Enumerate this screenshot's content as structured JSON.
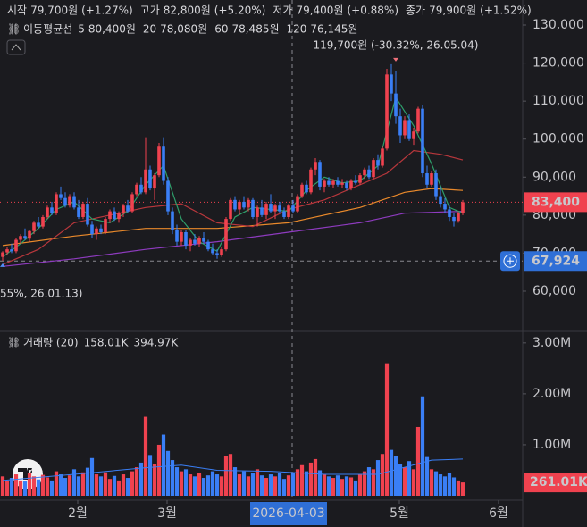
{
  "header": {
    "items": [
      {
        "label": "시작",
        "value": "79,700원",
        "change": "(+1.27%)"
      },
      {
        "label": "고가",
        "value": "82,800원",
        "change": "(+5.20%)"
      },
      {
        "label": "저가",
        "value": "79,400원",
        "change": "(+0.88%)"
      },
      {
        "label": "종가",
        "value": "79,900원",
        "change": "(+1.52%)"
      }
    ]
  },
  "ma_legend": {
    "title": "이동평균선",
    "items": [
      {
        "period": "5",
        "value": "80,400원"
      },
      {
        "period": "20",
        "value": "78,080원"
      },
      {
        "period": "60",
        "value": "78,485원"
      },
      {
        "period": "120",
        "value": "76,145원"
      }
    ]
  },
  "chart_data": {
    "type": "candlestick",
    "up_color": "#f0424f",
    "down_color": "#3a7ff6",
    "ohlc": [
      [
        69000,
        70500,
        68000,
        70200
      ],
      [
        70200,
        71500,
        69500,
        71000
      ],
      [
        71000,
        72500,
        70000,
        70500
      ],
      [
        70500,
        74000,
        70000,
        73500
      ],
      [
        73500,
        75000,
        72500,
        74500
      ],
      [
        74500,
        76500,
        73500,
        73800
      ],
      [
        73800,
        76000,
        73000,
        75800
      ],
      [
        75800,
        78500,
        75000,
        78000
      ],
      [
        78000,
        79500,
        76500,
        77000
      ],
      [
        77000,
        80000,
        76500,
        79500
      ],
      [
        79500,
        82500,
        79000,
        82000
      ],
      [
        82000,
        83500,
        80000,
        80500
      ],
      [
        80500,
        86000,
        80000,
        85500
      ],
      [
        85500,
        87500,
        84000,
        84500
      ],
      [
        84500,
        86000,
        82000,
        82500
      ],
      [
        82500,
        85500,
        82000,
        85000
      ],
      [
        85000,
        86000,
        81500,
        82000
      ],
      [
        82000,
        84000,
        79000,
        79500
      ],
      [
        79500,
        83500,
        79000,
        83000
      ],
      [
        83000,
        84500,
        77000,
        77500
      ],
      [
        77500,
        78500,
        74000,
        75000
      ],
      [
        75000,
        77000,
        73500,
        76500
      ],
      [
        76500,
        77500,
        75000,
        75500
      ],
      [
        75500,
        79500,
        75000,
        79000
      ],
      [
        79000,
        81500,
        78000,
        81000
      ],
      [
        81000,
        82000,
        78500,
        79000
      ],
      [
        79000,
        81000,
        78000,
        80500
      ],
      [
        80500,
        83000,
        79500,
        82500
      ],
      [
        82500,
        84000,
        80500,
        81000
      ],
      [
        81000,
        86000,
        80500,
        85500
      ],
      [
        85500,
        88500,
        85000,
        88000
      ],
      [
        88000,
        90000,
        85500,
        86000
      ],
      [
        86000,
        100500,
        85500,
        92000
      ],
      [
        92000,
        93000,
        86500,
        87000
      ],
      [
        87000,
        91000,
        84000,
        90500
      ],
      [
        90500,
        99000,
        90000,
        98000
      ],
      [
        98000,
        100500,
        88000,
        89000
      ],
      [
        89000,
        90000,
        80000,
        81000
      ],
      [
        81000,
        82000,
        75000,
        76000
      ],
      [
        76000,
        77500,
        72000,
        73000
      ],
      [
        73000,
        76000,
        72000,
        75500
      ],
      [
        75500,
        76000,
        71000,
        72000
      ],
      [
        72000,
        74000,
        70500,
        73500
      ],
      [
        73500,
        75000,
        72000,
        72500
      ],
      [
        72500,
        74500,
        71500,
        74000
      ],
      [
        74000,
        75500,
        72500,
        73000
      ],
      [
        73000,
        73500,
        70500,
        71000
      ],
      [
        71000,
        72500,
        69500,
        70000
      ],
      [
        70000,
        71000,
        68500,
        69500
      ],
      [
        69500,
        71500,
        69000,
        71000
      ],
      [
        71000,
        79500,
        70500,
        79000
      ],
      [
        79000,
        84500,
        78500,
        84000
      ],
      [
        84000,
        85000,
        81000,
        81500
      ],
      [
        81500,
        84000,
        80000,
        83500
      ],
      [
        83500,
        85000,
        81500,
        82000
      ],
      [
        82000,
        84500,
        81000,
        84000
      ],
      [
        84000,
        84500,
        79000,
        79500
      ],
      [
        79500,
        82500,
        77000,
        82000
      ],
      [
        82000,
        84000,
        79500,
        80000
      ],
      [
        80000,
        83500,
        79000,
        83000
      ],
      [
        83000,
        85500,
        80500,
        81000
      ],
      [
        81000,
        83000,
        79000,
        82500
      ],
      [
        82500,
        83500,
        80500,
        81000
      ],
      [
        81000,
        82000,
        79000,
        79500
      ],
      [
        79500,
        83000,
        79000,
        82500
      ],
      [
        82500,
        84000,
        80500,
        81000
      ],
      [
        81000,
        85500,
        80500,
        85000
      ],
      [
        85000,
        88500,
        84500,
        88000
      ],
      [
        88000,
        89000,
        85500,
        86000
      ],
      [
        86000,
        92500,
        85500,
        92000
      ],
      [
        92000,
        95000,
        90500,
        94000
      ],
      [
        94000,
        94500,
        86500,
        87500
      ],
      [
        87500,
        89500,
        86000,
        89000
      ],
      [
        89000,
        90000,
        87500,
        88000
      ],
      [
        88000,
        89500,
        87000,
        89000
      ],
      [
        89000,
        90000,
        87500,
        88000
      ],
      [
        88000,
        89500,
        87000,
        88500
      ],
      [
        88500,
        89000,
        86500,
        87000
      ],
      [
        87000,
        89500,
        86500,
        89000
      ],
      [
        89000,
        90500,
        88000,
        88500
      ],
      [
        88500,
        91000,
        88000,
        90500
      ],
      [
        90500,
        92500,
        89500,
        92000
      ],
      [
        92000,
        93000,
        89500,
        90000
      ],
      [
        90000,
        95000,
        89500,
        94500
      ],
      [
        94500,
        96000,
        92000,
        93000
      ],
      [
        93000,
        98000,
        92500,
        97500
      ],
      [
        97500,
        118500,
        97000,
        117000
      ],
      [
        117000,
        119700,
        110000,
        112000
      ],
      [
        112000,
        118000,
        104000,
        106000
      ],
      [
        106000,
        108000,
        99000,
        101000
      ],
      [
        101000,
        106000,
        100000,
        105000
      ],
      [
        105000,
        106500,
        99500,
        100000
      ],
      [
        100000,
        103000,
        98500,
        102000
      ],
      [
        102000,
        108500,
        101500,
        108000
      ],
      [
        108000,
        109000,
        90000,
        91000
      ],
      [
        91000,
        93000,
        87000,
        88000
      ],
      [
        88000,
        91500,
        87500,
        91000
      ],
      [
        91000,
        92000,
        84000,
        85000
      ],
      [
        85000,
        87500,
        82000,
        83000
      ],
      [
        83000,
        84500,
        80500,
        81500
      ],
      [
        81500,
        82500,
        78500,
        79500
      ],
      [
        79500,
        80500,
        77000,
        78500
      ],
      [
        78500,
        81000,
        78000,
        80500
      ],
      [
        80500,
        84000,
        80000,
        83400
      ]
    ],
    "volume": [
      380000,
      300000,
      350000,
      420000,
      300000,
      280000,
      450000,
      380000,
      320000,
      410000,
      360000,
      300000,
      480000,
      420000,
      350000,
      400000,
      520000,
      380000,
      460000,
      550000,
      740000,
      420000,
      380000,
      460000,
      330000,
      390000,
      300000,
      420000,
      350000,
      480000,
      560000,
      650000,
      1550000,
      800000,
      620000,
      1000000,
      1200000,
      880000,
      700000,
      560000,
      480000,
      520000,
      420000,
      380000,
      450000,
      350000,
      400000,
      480000,
      420000,
      380000,
      780000,
      820000,
      560000,
      420000,
      480000,
      380000,
      450000,
      520000,
      400000,
      350000,
      420000,
      380000,
      450000,
      330000,
      400000,
      460000,
      520000,
      600000,
      480000,
      650000,
      720000,
      500000,
      420000,
      380000,
      350000,
      400000,
      330000,
      380000,
      360000,
      300000,
      420000,
      480000,
      560000,
      520000,
      700000,
      820000,
      2600000,
      900000,
      780000,
      620000,
      560000,
      680000,
      520000,
      1350000,
      1950000,
      760000,
      520000,
      480000,
      420000,
      380000,
      440000,
      360000,
      300000,
      261010
    ],
    "ma": [
      {
        "name": "5",
        "color": "#2e9e6a",
        "x": [
          0,
          4,
          8,
          12,
          16,
          20,
          24,
          28,
          32,
          36,
          40,
          44,
          48,
          52,
          56,
          60,
          64,
          68,
          72,
          76,
          80,
          84,
          88,
          92,
          96,
          100,
          103
        ],
        "values": [
          69000,
          72500,
          76500,
          81500,
          83500,
          79000,
          78000,
          81000,
          88000,
          93000,
          79000,
          73000,
          70500,
          79500,
          82000,
          81500,
          81000,
          86500,
          90000,
          88500,
          89000,
          93000,
          111000,
          103500,
          93500,
          82000,
          80500
        ]
      },
      {
        "name": "20",
        "color": "#b8373c",
        "x": [
          0,
          8,
          16,
          24,
          32,
          40,
          48,
          56,
          64,
          72,
          80,
          86,
          92,
          98,
          103
        ],
        "values": [
          67000,
          71000,
          78000,
          80000,
          82000,
          83000,
          78000,
          77000,
          81500,
          84000,
          88000,
          91000,
          97000,
          96000,
          94500
        ]
      },
      {
        "name": "60",
        "color": "#e9892b",
        "x": [
          0,
          16,
          32,
          48,
          64,
          80,
          90,
          96,
          103
        ],
        "values": [
          72000,
          74500,
          76500,
          76500,
          78000,
          82000,
          86000,
          87000,
          86500
        ]
      },
      {
        "name": "120",
        "color": "#8e3bbf",
        "x": [
          0,
          16,
          32,
          48,
          64,
          80,
          90,
          103
        ],
        "values": [
          66500,
          68500,
          71000,
          73000,
          75500,
          78000,
          80500,
          81000
        ]
      }
    ],
    "volume_ma": {
      "color": "#3a7ff6",
      "x": [
        0,
        16,
        32,
        40,
        48,
        60,
        72,
        84,
        90,
        96,
        103
      ],
      "values": [
        300000,
        420000,
        550000,
        600000,
        500000,
        480000,
        420000,
        420000,
        560000,
        700000,
        720000
      ]
    },
    "xlim": [
      -0.6,
      116.4
    ],
    "xticks": [
      {
        "value": 16.8,
        "label": "2월"
      },
      {
        "value": 36.8,
        "label": "3월"
      },
      {
        "value": 88.8,
        "label": "5월"
      },
      {
        "value": 111,
        "label": "6월"
      }
    ],
    "ylim": [
      49660,
      136580
    ],
    "yticks": [
      {
        "value": 60000,
        "label": "60,000"
      },
      {
        "value": 70000,
        "label": "70,000"
      },
      {
        "value": 80000,
        "label": "80,000"
      },
      {
        "value": 90000,
        "label": "90,000"
      },
      {
        "value": 100000,
        "label": "100,000"
      },
      {
        "value": 110000,
        "label": "110,000"
      },
      {
        "value": 120000,
        "label": "120,000"
      },
      {
        "value": 130000,
        "label": "130,000"
      }
    ],
    "volume_ylim": [
      0,
      3190000
    ],
    "volume_yticks": [
      {
        "value": 1000000,
        "label": "1.00M"
      },
      {
        "value": 2000000,
        "label": "2.00M"
      },
      {
        "value": 3000000,
        "label": "3.00M"
      }
    ],
    "crosshair": {
      "x": 64.8,
      "label": "2026-04-03"
    },
    "last_price": {
      "value": 83400,
      "label": "83,400"
    },
    "marker_line": {
      "value": 67924,
      "label": "67,924"
    },
    "high_annotation": {
      "x": 88,
      "value": 119700,
      "text": "119,700원 (-30.32%, 26.05.04)"
    },
    "low_annotation": {
      "x": 0,
      "value": 68000,
      "text": "55%, 26.01.13)"
    },
    "volume_legend": {
      "title": "거래량 (20)",
      "values": [
        "158.01K",
        "394.97K"
      ]
    },
    "last_volume": {
      "value": 261010,
      "label": "261.01K"
    }
  }
}
